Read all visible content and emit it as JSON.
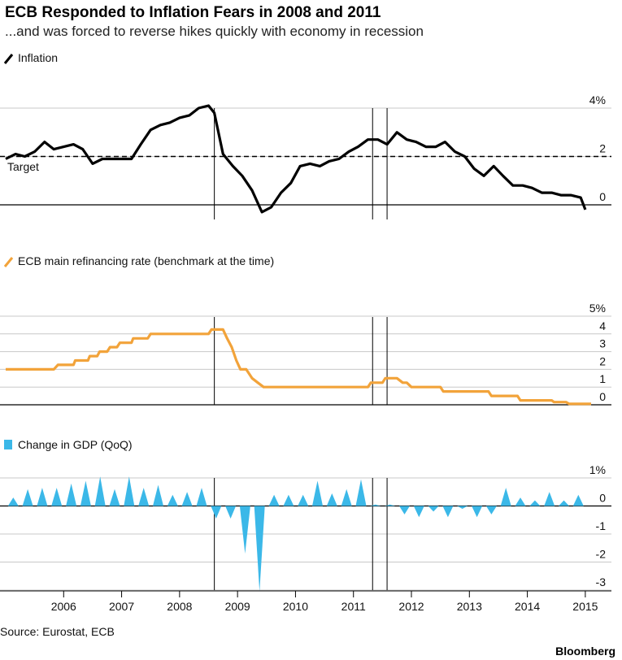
{
  "title": "ECB Responded to Inflation Fears in 2008 and 2011",
  "subtitle": "...and was forced to reverse hikes quickly with economy in recession",
  "source": "Source: Eurostat, ECB",
  "brand": "Bloomberg",
  "colors": {
    "inflation": "#000000",
    "rate": "#f2a33a",
    "gdp": "#3bb8e8",
    "grid": "#c8c8c8"
  },
  "x_ticks": [
    "2006",
    "2007",
    "2008",
    "2009",
    "2010",
    "2011",
    "2012",
    "2013",
    "2014",
    "2015"
  ],
  "event_lines": [
    2008.6,
    2011.33,
    2011.58
  ],
  "chart_data": [
    {
      "type": "line",
      "legend": "Inflation",
      "annotation": "Target",
      "target": 2.0,
      "ylim": [
        -0.8,
        4.2
      ],
      "yticks": [
        0,
        2,
        4
      ],
      "ytick_labels": [
        "0",
        "2",
        "4%"
      ],
      "x": [
        2005.0,
        2005.17,
        2005.33,
        2005.5,
        2005.67,
        2005.83,
        2006.0,
        2006.17,
        2006.33,
        2006.5,
        2006.67,
        2006.83,
        2007.0,
        2007.17,
        2007.33,
        2007.5,
        2007.67,
        2007.83,
        2008.0,
        2008.17,
        2008.33,
        2008.5,
        2008.6,
        2008.75,
        2008.92,
        2009.08,
        2009.25,
        2009.42,
        2009.58,
        2009.75,
        2009.92,
        2010.08,
        2010.25,
        2010.42,
        2010.58,
        2010.75,
        2010.92,
        2011.08,
        2011.25,
        2011.42,
        2011.58,
        2011.75,
        2011.92,
        2012.08,
        2012.25,
        2012.42,
        2012.58,
        2012.75,
        2012.92,
        2013.08,
        2013.25,
        2013.42,
        2013.58,
        2013.75,
        2013.92,
        2014.08,
        2014.25,
        2014.42,
        2014.58,
        2014.75,
        2014.92,
        2015.0
      ],
      "y": [
        1.9,
        2.1,
        2.0,
        2.2,
        2.6,
        2.3,
        2.4,
        2.5,
        2.3,
        1.7,
        1.9,
        1.9,
        1.9,
        1.9,
        2.5,
        3.1,
        3.3,
        3.4,
        3.6,
        3.7,
        4.0,
        4.1,
        3.8,
        2.1,
        1.6,
        1.2,
        0.6,
        -0.3,
        -0.1,
        0.5,
        0.9,
        1.6,
        1.7,
        1.6,
        1.8,
        1.9,
        2.2,
        2.4,
        2.7,
        2.7,
        2.5,
        3.0,
        2.7,
        2.6,
        2.4,
        2.4,
        2.6,
        2.2,
        2.0,
        1.5,
        1.2,
        1.6,
        1.2,
        0.8,
        0.8,
        0.7,
        0.5,
        0.5,
        0.4,
        0.4,
        0.3,
        -0.2
      ]
    },
    {
      "type": "line",
      "legend": "ECB main refinancing rate (benchmark at the time)",
      "ylim": [
        0,
        5
      ],
      "yticks": [
        0,
        1,
        2,
        3,
        4,
        5
      ],
      "ytick_labels": [
        "0",
        "1",
        "2",
        "3",
        "4",
        "5%"
      ],
      "x": [
        2005.0,
        2005.83,
        2005.9,
        2006.17,
        2006.2,
        2006.42,
        2006.45,
        2006.58,
        2006.62,
        2006.75,
        2006.8,
        2006.92,
        2006.97,
        2007.17,
        2007.2,
        2007.45,
        2007.5,
        2008.5,
        2008.55,
        2008.75,
        2008.82,
        2008.9,
        2008.98,
        2009.05,
        2009.15,
        2009.25,
        2009.35,
        2009.45,
        2011.25,
        2011.3,
        2011.5,
        2011.55,
        2011.75,
        2011.85,
        2011.92,
        2012.0,
        2012.5,
        2012.55,
        2013.33,
        2013.38,
        2013.83,
        2013.88,
        2014.42,
        2014.46,
        2014.67,
        2014.72,
        2015.1
      ],
      "y": [
        2.0,
        2.0,
        2.25,
        2.25,
        2.5,
        2.5,
        2.75,
        2.75,
        3.0,
        3.0,
        3.25,
        3.25,
        3.5,
        3.5,
        3.75,
        3.75,
        4.0,
        4.0,
        4.25,
        4.25,
        3.75,
        3.25,
        2.5,
        2.0,
        2.0,
        1.5,
        1.25,
        1.0,
        1.0,
        1.25,
        1.25,
        1.5,
        1.5,
        1.25,
        1.25,
        1.0,
        1.0,
        0.75,
        0.75,
        0.5,
        0.5,
        0.25,
        0.25,
        0.15,
        0.15,
        0.05,
        0.05
      ]
    },
    {
      "type": "area",
      "legend": "Change in GDP (QoQ)",
      "ylim": [
        -3,
        1
      ],
      "yticks": [
        -3,
        -2,
        -1,
        0,
        1
      ],
      "ytick_labels": [
        "-3",
        "-2",
        "-1",
        "0",
        "1%"
      ],
      "x": [
        2005.13,
        2005.38,
        2005.63,
        2005.88,
        2006.13,
        2006.38,
        2006.63,
        2006.88,
        2007.13,
        2007.38,
        2007.63,
        2007.88,
        2008.13,
        2008.38,
        2008.63,
        2008.88,
        2009.13,
        2009.38,
        2009.63,
        2009.88,
        2010.13,
        2010.38,
        2010.63,
        2010.88,
        2011.13,
        2011.38,
        2011.63,
        2011.88,
        2012.13,
        2012.38,
        2012.63,
        2012.88,
        2013.13,
        2013.38,
        2013.63,
        2013.88,
        2014.13,
        2014.38,
        2014.63,
        2014.88
      ],
      "y": [
        0.3,
        0.6,
        0.65,
        0.65,
        0.8,
        0.9,
        1.05,
        0.6,
        1.05,
        0.65,
        0.75,
        0.4,
        0.5,
        0.65,
        -0.45,
        -0.45,
        -1.7,
        -3.05,
        0.4,
        0.4,
        0.4,
        0.9,
        0.45,
        0.6,
        0.95,
        0.05,
        0.05,
        -0.3,
        -0.4,
        -0.2,
        -0.4,
        -0.1,
        -0.4,
        -0.3,
        0.65,
        0.3,
        0.2,
        0.5,
        0.2,
        0.4
      ]
    }
  ]
}
